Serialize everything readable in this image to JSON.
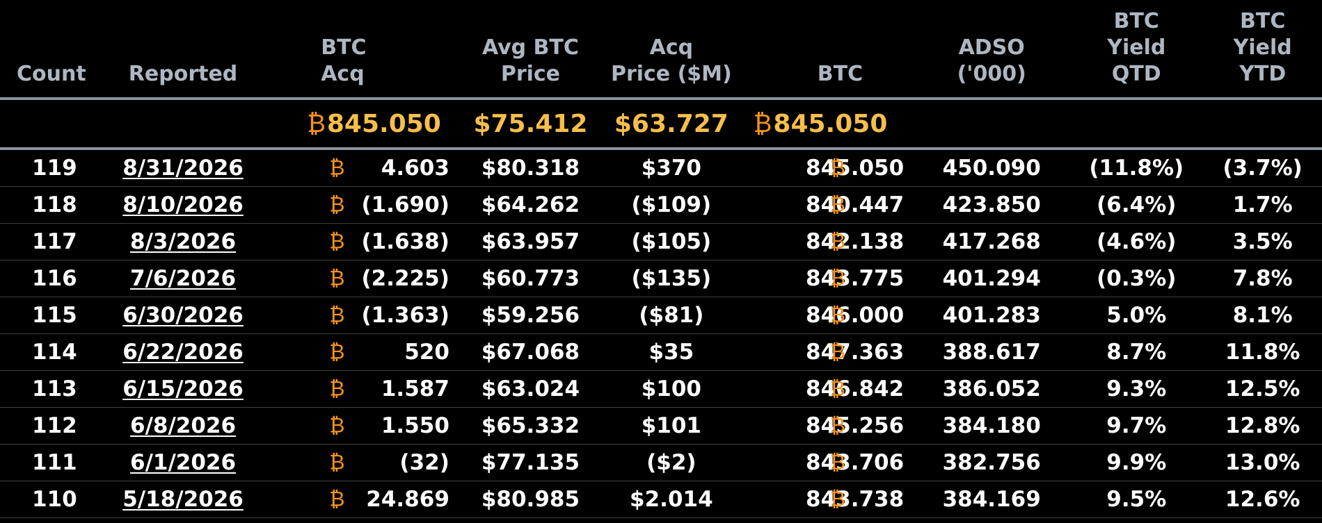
{
  "headers": {
    "count": "Count",
    "reported": "Reported",
    "btc_acq": [
      "BTC",
      "Acq"
    ],
    "avg_btc_price": [
      "Avg BTC",
      "Price"
    ],
    "acq_price": [
      "Acq",
      "Price ($M)"
    ],
    "btc": "BTC",
    "adso": [
      "ADSO",
      "('000)"
    ],
    "btc_yield_qtd": [
      "BTC",
      "Yield",
      "QTD"
    ],
    "btc_yield_ytd": [
      "BTC",
      "Yield",
      "YTD"
    ]
  },
  "btc_symbol": "₿",
  "summary": {
    "btc_acq": "845.050",
    "avg_btc_price": "$75.412",
    "acq_price": "$63.727",
    "btc": "845.050"
  },
  "rows": [
    {
      "count": "119",
      "reported": "8/31/2026",
      "btc_acq": "4.603",
      "avg_price": "$80.318",
      "acq_price": "$370",
      "btc": "845.050",
      "adso": "450.090",
      "qtd": "(11.8%)",
      "ytd": "(3.7%)"
    },
    {
      "count": "118",
      "reported": "8/10/2026",
      "btc_acq": "(1.690)",
      "avg_price": "$64.262",
      "acq_price": "($109)",
      "btc": "840.447",
      "adso": "423.850",
      "qtd": "(6.4%)",
      "ytd": "1.7%"
    },
    {
      "count": "117",
      "reported": "8/3/2026",
      "btc_acq": "(1.638)",
      "avg_price": "$63.957",
      "acq_price": "($105)",
      "btc": "842.138",
      "adso": "417.268",
      "qtd": "(4.6%)",
      "ytd": "3.5%"
    },
    {
      "count": "116",
      "reported": "7/6/2026",
      "btc_acq": "(2.225)",
      "avg_price": "$60.773",
      "acq_price": "($135)",
      "btc": "843.775",
      "adso": "401.294",
      "qtd": "(0.3%)",
      "ytd": "7.8%"
    },
    {
      "count": "115",
      "reported": "6/30/2026",
      "btc_acq": "(1.363)",
      "avg_price": "$59.256",
      "acq_price": "($81)",
      "btc": "846.000",
      "adso": "401.283",
      "qtd": "5.0%",
      "ytd": "8.1%"
    },
    {
      "count": "114",
      "reported": "6/22/2026",
      "btc_acq": "520",
      "avg_price": "$67.068",
      "acq_price": "$35",
      "btc": "847.363",
      "adso": "388.617",
      "qtd": "8.7%",
      "ytd": "11.8%"
    },
    {
      "count": "113",
      "reported": "6/15/2026",
      "btc_acq": "1.587",
      "avg_price": "$63.024",
      "acq_price": "$100",
      "btc": "846.842",
      "adso": "386.052",
      "qtd": "9.3%",
      "ytd": "12.5%"
    },
    {
      "count": "112",
      "reported": "6/8/2026",
      "btc_acq": "1.550",
      "avg_price": "$65.332",
      "acq_price": "$101",
      "btc": "845.256",
      "adso": "384.180",
      "qtd": "9.7%",
      "ytd": "12.8%"
    },
    {
      "count": "111",
      "reported": "6/1/2026",
      "btc_acq": "(32)",
      "avg_price": "$77.135",
      "acq_price": "($2)",
      "btc": "843.706",
      "adso": "382.756",
      "qtd": "9.9%",
      "ytd": "13.0%"
    },
    {
      "count": "110",
      "reported": "5/18/2026",
      "btc_acq": "24.869",
      "avg_price": "$80.985",
      "acq_price": "$2.014",
      "btc": "843.738",
      "adso": "384.169",
      "qtd": "9.5%",
      "ytd": "12.6%"
    }
  ],
  "colors": {
    "background": "#000000",
    "header_text": "#aeb7c1",
    "summary_text": "#f6be4a",
    "btc_symbol": "#f7931a",
    "row_text": "#ffffff",
    "divider": "#8a939d"
  }
}
